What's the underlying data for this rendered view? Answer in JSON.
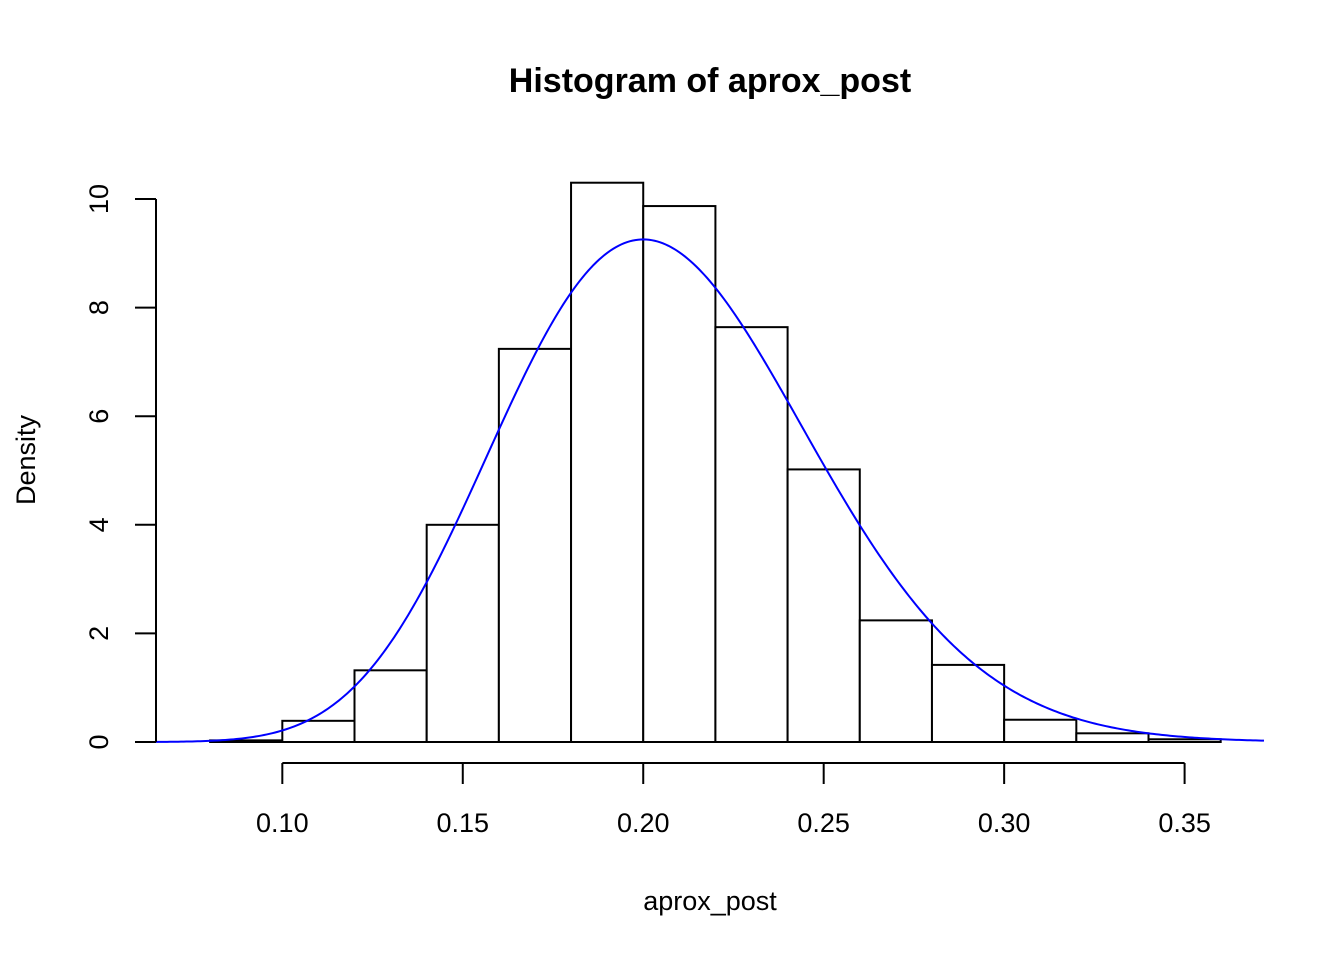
{
  "chart_data": {
    "type": "bar",
    "title": "Histogram of aprox_post",
    "xlabel": "aprox_post",
    "ylabel": "Density",
    "xlim": [
      0.065,
      0.372
    ],
    "ylim": [
      0,
      10.35
    ],
    "x_ticks": [
      "0.10",
      "0.15",
      "0.20",
      "0.25",
      "0.30",
      "0.35"
    ],
    "x_tick_values": [
      0.1,
      0.15,
      0.2,
      0.25,
      0.3,
      0.35
    ],
    "y_ticks": [
      "0",
      "2",
      "4",
      "6",
      "8",
      "10"
    ],
    "y_tick_values": [
      0,
      2,
      4,
      6,
      8,
      10
    ],
    "bins": [
      {
        "start": 0.08,
        "end": 0.1,
        "density": 0.03
      },
      {
        "start": 0.1,
        "end": 0.12,
        "density": 0.39
      },
      {
        "start": 0.12,
        "end": 0.14,
        "density": 1.32
      },
      {
        "start": 0.14,
        "end": 0.16,
        "density": 4.0
      },
      {
        "start": 0.16,
        "end": 0.18,
        "density": 7.24
      },
      {
        "start": 0.18,
        "end": 0.2,
        "density": 10.3
      },
      {
        "start": 0.2,
        "end": 0.22,
        "density": 9.87
      },
      {
        "start": 0.22,
        "end": 0.24,
        "density": 7.64
      },
      {
        "start": 0.24,
        "end": 0.26,
        "density": 5.02
      },
      {
        "start": 0.26,
        "end": 0.28,
        "density": 2.24
      },
      {
        "start": 0.28,
        "end": 0.3,
        "density": 1.42
      },
      {
        "start": 0.3,
        "end": 0.32,
        "density": 0.41
      },
      {
        "start": 0.32,
        "end": 0.34,
        "density": 0.16
      },
      {
        "start": 0.34,
        "end": 0.36,
        "density": 0.05
      }
    ],
    "curve": {
      "type": "line",
      "color": "#0000ff",
      "x_range": [
        0.065,
        0.372
      ],
      "distribution": "beta",
      "alpha": 18,
      "beta": 69
    },
    "grid": false,
    "legend": "none"
  }
}
